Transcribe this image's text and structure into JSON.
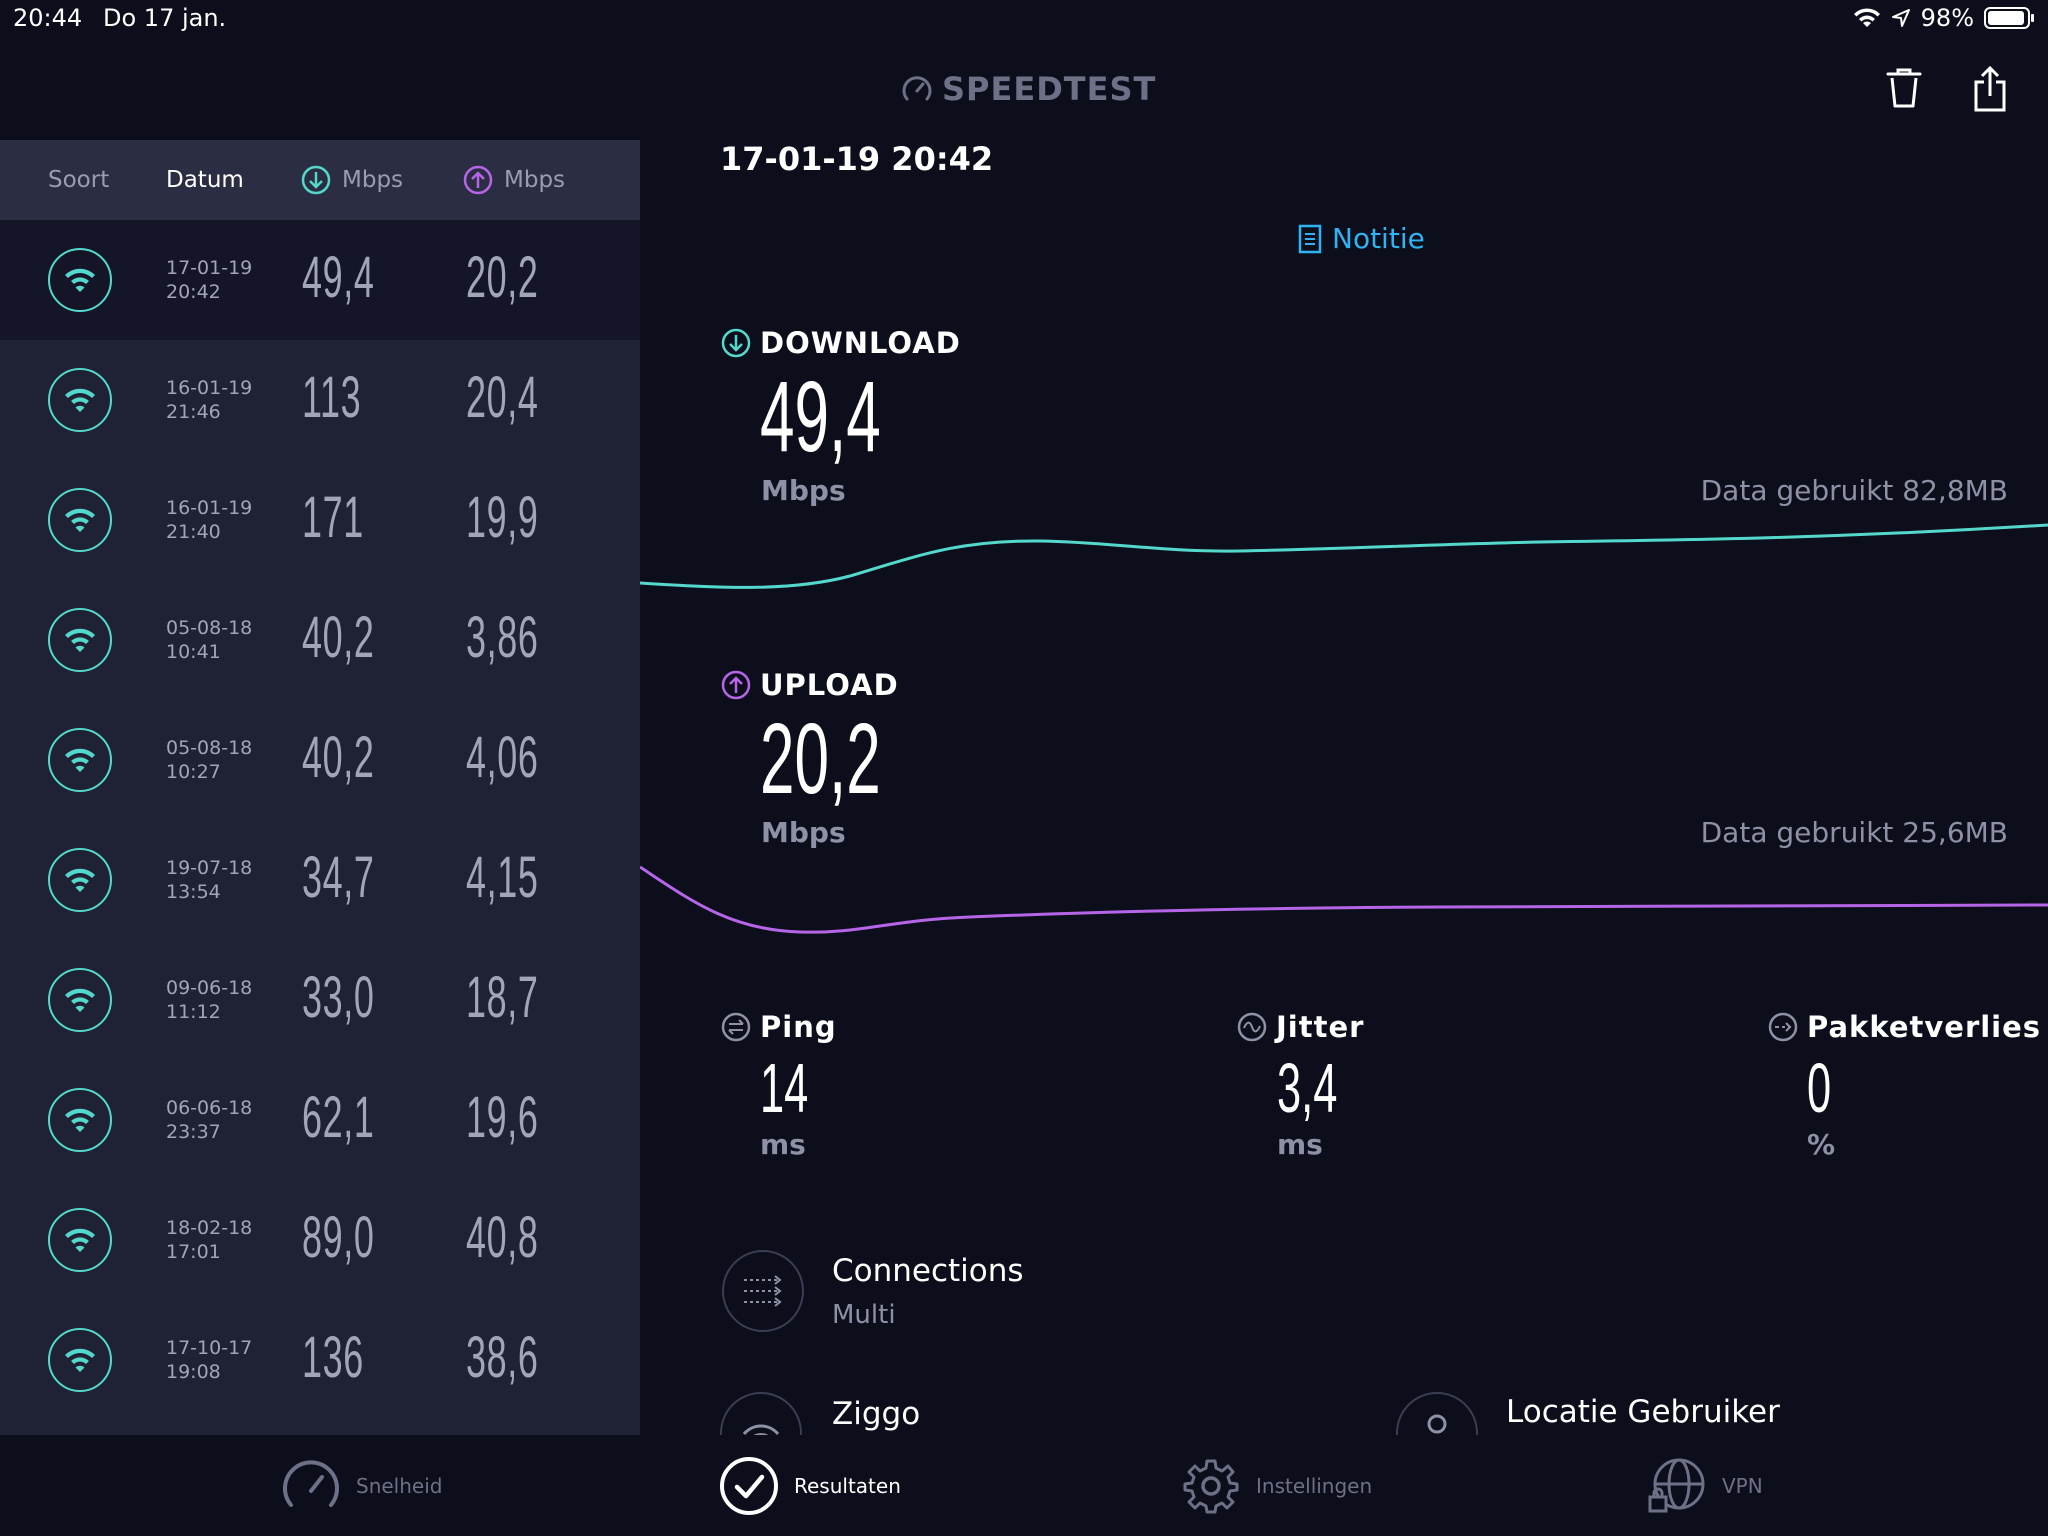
{
  "status_bar": {
    "time": "20:44",
    "date": "Do 17 jan.",
    "battery": "98%"
  },
  "app": {
    "logo": "SPEEDTEST"
  },
  "list": {
    "headers": {
      "type": "Soort",
      "date": "Datum",
      "download_unit": "Mbps",
      "upload_unit": "Mbps"
    },
    "rows": [
      {
        "date": "17-01-19",
        "time": "20:42",
        "download": "49,4",
        "upload": "20,2"
      },
      {
        "date": "16-01-19",
        "time": "21:46",
        "download": "113",
        "upload": "20,4"
      },
      {
        "date": "16-01-19",
        "time": "21:40",
        "download": "171",
        "upload": "19,9"
      },
      {
        "date": "05-08-18",
        "time": "10:41",
        "download": "40,2",
        "upload": "3,86"
      },
      {
        "date": "05-08-18",
        "time": "10:27",
        "download": "40,2",
        "upload": "4,06"
      },
      {
        "date": "19-07-18",
        "time": "13:54",
        "download": "34,7",
        "upload": "4,15"
      },
      {
        "date": "09-06-18",
        "time": "11:12",
        "download": "33,0",
        "upload": "18,7"
      },
      {
        "date": "06-06-18",
        "time": "23:37",
        "download": "62,1",
        "upload": "19,6"
      },
      {
        "date": "18-02-18",
        "time": "17:01",
        "download": "89,0",
        "upload": "40,8"
      },
      {
        "date": "17-10-17",
        "time": "19:08",
        "download": "136",
        "upload": "38,6"
      }
    ]
  },
  "detail": {
    "datetime": "17-01-19 20:42",
    "note_label": "Notitie",
    "download": {
      "label": "DOWNLOAD",
      "value": "49,4",
      "unit": "Mbps",
      "usage": "Data gebruikt 82,8MB"
    },
    "upload": {
      "label": "UPLOAD",
      "value": "20,2",
      "unit": "Mbps",
      "usage": "Data gebruikt 25,6MB"
    },
    "ping": {
      "label": "Ping",
      "value": "14",
      "unit": "ms"
    },
    "jitter": {
      "label": "Jitter",
      "value": "3,4",
      "unit": "ms"
    },
    "loss": {
      "label": "Pakketverlies",
      "value": "0",
      "unit": "%"
    },
    "connections": {
      "title": "Connections",
      "sub": "Multi"
    },
    "provider": {
      "title": "Ziggo"
    },
    "location": {
      "title": "Locatie Gebruiker"
    }
  },
  "tabs": [
    {
      "label": "Snelheid"
    },
    {
      "label": "Resultaten"
    },
    {
      "label": "Instellingen"
    },
    {
      "label": "VPN"
    }
  ],
  "colors": {
    "download": "#54d8cb",
    "upload": "#b665e8",
    "accent": "#2fb3f2"
  }
}
